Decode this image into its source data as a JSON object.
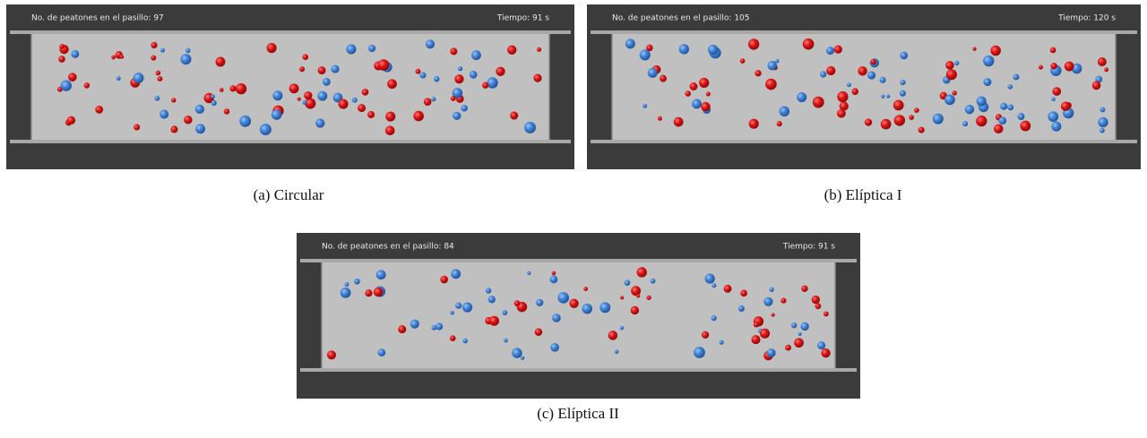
{
  "panels": [
    {
      "header": {
        "left": "No. de peatones en el pasillo: 97",
        "right": "Tiempo: 91 s"
      },
      "caption": "(a)  Circular"
    },
    {
      "header": {
        "left": "No. de peatones en el pasillo: 105",
        "right": "Tiempo: 120 s"
      },
      "caption": "(b)  Elíptica I"
    },
    {
      "header": {
        "left": "No. de peatones en el pasillo: 84",
        "right": "Tiempo: 91 s"
      },
      "caption": "(c)  Elíptica II"
    }
  ]
}
